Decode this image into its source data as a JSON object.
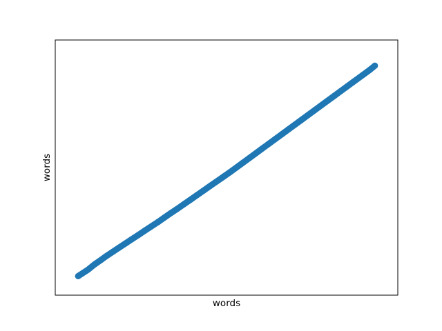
{
  "chart_data": {
    "type": "scatter",
    "title": "",
    "xlabel": "words",
    "ylabel": "words",
    "xticks_visible": false,
    "yticks_visible": false,
    "grid": false,
    "legend": "none",
    "point_color": "#1f77b4",
    "xlim": [
      0,
      1
    ],
    "ylim": [
      0,
      1
    ],
    "series": [
      {
        "points": [
          [
            0.045,
            0.045
          ],
          [
            0.075,
            0.072
          ],
          [
            0.095,
            0.094
          ],
          [
            0.115,
            0.113
          ],
          [
            0.13,
            0.128
          ],
          [
            0.15,
            0.146
          ],
          [
            0.17,
            0.164
          ],
          [
            0.19,
            0.182
          ],
          [
            0.21,
            0.2
          ],
          [
            0.23,
            0.218
          ],
          [
            0.25,
            0.236
          ],
          [
            0.27,
            0.254
          ],
          [
            0.29,
            0.272
          ],
          [
            0.31,
            0.291
          ],
          [
            0.33,
            0.31
          ],
          [
            0.35,
            0.328
          ],
          [
            0.37,
            0.347
          ],
          [
            0.39,
            0.366
          ],
          [
            0.41,
            0.385
          ],
          [
            0.43,
            0.404
          ],
          [
            0.45,
            0.423
          ],
          [
            0.47,
            0.442
          ],
          [
            0.49,
            0.461
          ],
          [
            0.51,
            0.48
          ],
          [
            0.53,
            0.5
          ],
          [
            0.55,
            0.52
          ],
          [
            0.57,
            0.54
          ],
          [
            0.59,
            0.56
          ],
          [
            0.61,
            0.58
          ],
          [
            0.63,
            0.6
          ],
          [
            0.65,
            0.62
          ],
          [
            0.67,
            0.64
          ],
          [
            0.69,
            0.66
          ],
          [
            0.71,
            0.68
          ],
          [
            0.73,
            0.7
          ],
          [
            0.75,
            0.72
          ],
          [
            0.77,
            0.74
          ],
          [
            0.79,
            0.76
          ],
          [
            0.81,
            0.78
          ],
          [
            0.83,
            0.8
          ],
          [
            0.85,
            0.82
          ],
          [
            0.87,
            0.84
          ],
          [
            0.89,
            0.86
          ],
          [
            0.9,
            0.87
          ],
          [
            0.92,
            0.89
          ],
          [
            0.93,
            0.9
          ],
          [
            0.94,
            0.91
          ],
          [
            0.955,
            0.927
          ]
        ]
      }
    ]
  }
}
